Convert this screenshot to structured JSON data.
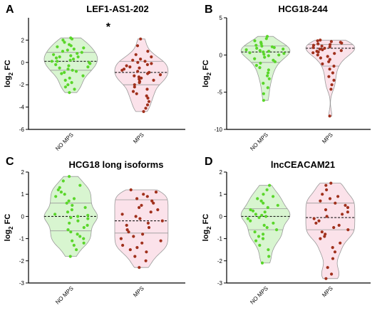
{
  "colors": {
    "no_mps_fill": "#d8f5d0",
    "no_mps_point": "#5ad62a",
    "mps_fill": "#fbe2ea",
    "mps_point": "#a0301c",
    "axis": "#000000",
    "outline": "#9a9a9a"
  },
  "chart_data": [
    {
      "panel": "A",
      "type": "violin",
      "title": "LEF1-AS1-202",
      "ylabel_main": "log",
      "ylabel_sub": "2",
      "ylabel_tail": " FC",
      "ylim": [
        -6,
        4
      ],
      "yticks": [
        -6,
        -4,
        -2,
        0,
        2
      ],
      "annotation": "*",
      "categories": [
        "NO MPS",
        "MPS"
      ],
      "series": [
        {
          "name": "NO MPS",
          "median": 0.1,
          "q1": -0.7,
          "q3": 0.9,
          "values": [
            2.2,
            2.1,
            2.0,
            1.8,
            1.6,
            1.5,
            1.4,
            1.3,
            1.2,
            1.1,
            1.0,
            0.9,
            0.8,
            0.7,
            0.6,
            0.5,
            0.5,
            0.4,
            0.3,
            0.2,
            0.1,
            0.1,
            0.0,
            -0.1,
            -0.2,
            -0.3,
            -0.4,
            -0.5,
            -0.6,
            -0.7,
            -0.8,
            -0.9,
            -1.0,
            -1.2,
            -1.4,
            -1.6,
            -1.8,
            -2.0,
            -2.2,
            -2.4,
            -2.7
          ]
        },
        {
          "name": "MPS",
          "median": -0.9,
          "q1": -2.0,
          "q3": 0.1,
          "values": [
            2.1,
            1.5,
            1.0,
            0.7,
            0.5,
            0.3,
            0.2,
            0.1,
            0.0,
            -0.1,
            -0.2,
            -0.3,
            -0.4,
            -0.5,
            -0.6,
            -0.7,
            -0.8,
            -0.9,
            -1.0,
            -1.1,
            -1.2,
            -1.3,
            -1.4,
            -1.5,
            -1.6,
            -1.7,
            -1.8,
            -2.0,
            -2.2,
            -2.4,
            -2.6,
            -2.8,
            -3.0,
            -3.2,
            -3.5,
            -3.8,
            -4.1,
            -4.4
          ]
        }
      ]
    },
    {
      "panel": "B",
      "type": "violin",
      "title": "HCG18-244",
      "ylabel_main": "log",
      "ylabel_sub": "2",
      "ylabel_tail": " FC",
      "ylim": [
        -10,
        5
      ],
      "yticks": [
        -10,
        -5,
        0,
        5
      ],
      "annotation": "",
      "categories": [
        "NO MPS",
        "MPS"
      ],
      "series": [
        {
          "name": "NO MPS",
          "median": 0.4,
          "q1": -1.0,
          "q3": 1.2,
          "values": [
            2.5,
            2.2,
            1.9,
            1.7,
            1.5,
            1.3,
            1.2,
            1.1,
            1.0,
            0.9,
            0.8,
            0.7,
            0.6,
            0.5,
            0.4,
            0.3,
            0.2,
            0.1,
            0.0,
            -0.1,
            -0.3,
            -0.5,
            -0.7,
            -0.9,
            -1.1,
            -1.4,
            -1.7,
            -2.0,
            -2.4,
            -2.8,
            -3.2,
            -3.8,
            -4.4,
            -5.2,
            -6.1
          ]
        },
        {
          "name": "MPS",
          "median": 0.9,
          "q1": -1.5,
          "q3": 1.4,
          "values": [
            2.0,
            1.9,
            1.8,
            1.7,
            1.6,
            1.5,
            1.4,
            1.3,
            1.2,
            1.1,
            1.0,
            0.9,
            0.8,
            0.7,
            0.6,
            0.5,
            0.4,
            0.3,
            0.2,
            0.0,
            -0.2,
            -0.4,
            -0.6,
            -0.9,
            -1.2,
            -1.5,
            -1.9,
            -2.4,
            -2.9,
            -3.4,
            -4.0,
            -4.6,
            -8.2
          ]
        }
      ]
    },
    {
      "panel": "C",
      "type": "violin",
      "title": "HCG18 long isoforms",
      "ylabel_main": "log",
      "ylabel_sub": "2",
      "ylabel_tail": " FC",
      "ylim": [
        -3,
        2
      ],
      "yticks": [
        -3,
        -2,
        -1,
        0,
        1,
        2
      ],
      "annotation": "",
      "categories": [
        "NO MPS",
        "MPS"
      ],
      "series": [
        {
          "name": "NO MPS",
          "median": 0.0,
          "q1": -0.65,
          "q3": 0.6,
          "values": [
            1.8,
            1.6,
            1.4,
            1.3,
            1.2,
            1.1,
            1.0,
            0.9,
            0.8,
            0.7,
            0.6,
            0.5,
            0.4,
            0.3,
            0.2,
            0.1,
            0.05,
            0.0,
            -0.05,
            -0.1,
            -0.2,
            -0.3,
            -0.4,
            -0.5,
            -0.6,
            -0.7,
            -0.8,
            -0.9,
            -1.0,
            -1.1,
            -1.2,
            -1.3,
            -1.5,
            -1.8
          ]
        },
        {
          "name": "MPS",
          "median": -0.2,
          "q1": -0.75,
          "q3": 0.75,
          "values": [
            1.2,
            1.1,
            1.0,
            0.9,
            0.8,
            0.7,
            0.6,
            0.5,
            0.4,
            0.3,
            0.2,
            0.1,
            0.0,
            -0.1,
            -0.2,
            -0.3,
            -0.4,
            -0.5,
            -0.6,
            -0.7,
            -0.8,
            -0.9,
            -1.0,
            -1.1,
            -1.2,
            -1.3,
            -1.4,
            -1.5,
            -1.6,
            -1.8,
            -2.0,
            -2.3
          ]
        }
      ]
    },
    {
      "panel": "D",
      "type": "violin",
      "title": "lncCEACAM21",
      "ylabel_main": "log",
      "ylabel_sub": "2",
      "ylabel_tail": " FC",
      "ylim": [
        -3,
        2
      ],
      "yticks": [
        -3,
        -2,
        -1,
        0,
        1,
        2
      ],
      "annotation": "",
      "categories": [
        "NO MPS",
        "MPS"
      ],
      "series": [
        {
          "name": "NO MPS",
          "median": 0.0,
          "q1": -0.6,
          "q3": 0.35,
          "values": [
            1.4,
            1.2,
            1.0,
            0.9,
            0.8,
            0.7,
            0.6,
            0.5,
            0.4,
            0.3,
            0.25,
            0.2,
            0.1,
            0.05,
            0.0,
            -0.05,
            -0.1,
            -0.2,
            -0.3,
            -0.4,
            -0.5,
            -0.6,
            -0.7,
            -0.8,
            -0.9,
            -1.0,
            -1.1,
            -1.3,
            -1.5,
            -1.8,
            -2.1
          ]
        },
        {
          "name": "MPS",
          "median": -0.05,
          "q1": -0.6,
          "q3": 0.6,
          "values": [
            1.5,
            1.4,
            1.2,
            1.0,
            0.9,
            0.8,
            0.7,
            0.6,
            0.5,
            0.4,
            0.3,
            0.2,
            0.1,
            0.0,
            -0.1,
            -0.2,
            -0.3,
            -0.4,
            -0.5,
            -0.6,
            -0.7,
            -0.8,
            -0.9,
            -1.0,
            -1.2,
            -1.4,
            -1.6,
            -1.9,
            -2.3,
            -2.6,
            -2.8
          ]
        }
      ]
    }
  ]
}
